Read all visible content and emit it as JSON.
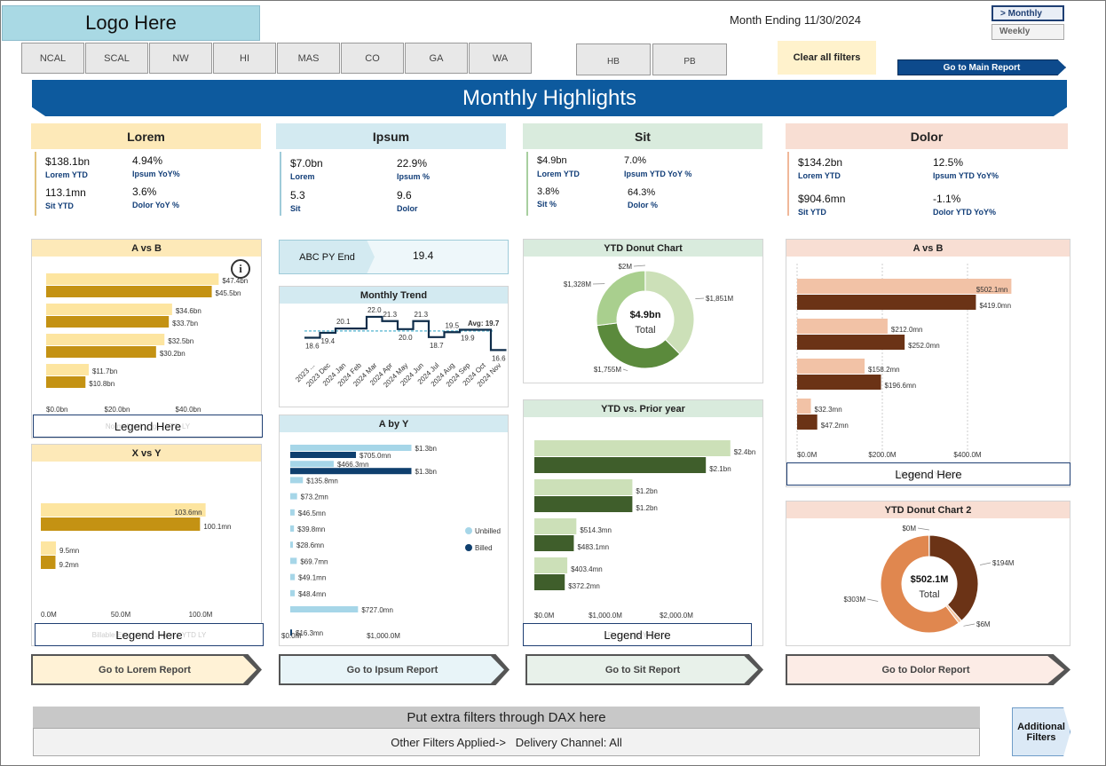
{
  "header": {
    "logo": "Logo Here",
    "month_ending": "Month Ending 11/30/2024",
    "toggle_monthly": "> Monthly",
    "toggle_weekly": "Weekly",
    "regions": [
      "NCAL",
      "SCAL",
      "NW",
      "HI",
      "MAS",
      "CO",
      "GA",
      "WA"
    ],
    "extra_filters": [
      "HB",
      "PB"
    ],
    "clear_filters": "Clear all filters",
    "main_report": "Go to Main Report",
    "banner": "Monthly Highlights"
  },
  "colors": {
    "banner": "#0d5a9e",
    "lorem_head": "#fde9b8",
    "ipsum_head": "#d3eaf1",
    "sit_head": "#d9ebdd",
    "dolor_head": "#f8ded3",
    "gold_light": "#fde5a0",
    "gold_dark": "#c49213",
    "navy": "#0f3f6e",
    "sky": "#a6d6e8",
    "green_light": "#cce0b8",
    "green_dark": "#3f5e2b",
    "peach_light": "#f2c2a6",
    "brown_dark": "#6b3316",
    "orange": "#e0874f"
  },
  "sections": {
    "lorem": {
      "title": "Lorem",
      "kpis": [
        {
          "value": "$138.1bn",
          "label": "Lorem YTD"
        },
        {
          "value": "4.94%",
          "label": "Ipsum YoY%"
        },
        {
          "value": "113.1mn",
          "label": "Sit YTD"
        },
        {
          "value": "3.6%",
          "label": "Dolor YoY %"
        }
      ],
      "go": "Go to Lorem Report"
    },
    "ipsum": {
      "title": "Ipsum",
      "kpis": [
        {
          "value": "$7.0bn",
          "label": "Lorem"
        },
        {
          "value": "22.9%",
          "label": "Ipsum %"
        },
        {
          "value": "5.3",
          "label": "Sit"
        },
        {
          "value": "9.6",
          "label": "Dolor"
        }
      ],
      "go": "Go to Ipsum Report"
    },
    "sit": {
      "title": "Sit",
      "kpis": [
        {
          "value": "$4.9bn",
          "label": "Lorem YTD"
        },
        {
          "value": "7.0%",
          "label": "Ipsum YTD YoY %"
        },
        {
          "value": "3.8%",
          "label": "Sit %"
        },
        {
          "value": "64.3%",
          "label": "Dolor %"
        }
      ],
      "go": "Go to Sit Report"
    },
    "dolor": {
      "title": "Dolor",
      "kpis": [
        {
          "value": "$134.2bn",
          "label": "Lorem YTD"
        },
        {
          "value": "12.5%",
          "label": "Ipsum YTD YoY%"
        },
        {
          "value": "$904.6mn",
          "label": "Sit YTD"
        },
        {
          "value": "-1.1%",
          "label": "Dolor YTD YoY%"
        }
      ],
      "go": "Go to Dolor Report"
    }
  },
  "abc": {
    "label": "ABC PY End",
    "value": "19.4"
  },
  "legends": {
    "lorem_top": "Legend Here",
    "lorem_top_ghost": "Normalized … ges YTD LY",
    "lorem_bottom": "Legend Here",
    "lorem_bottom_ghost": "Billable Encounter … unters YTD LY",
    "sit": "Legend Here",
    "sit_ghost": "Pay … nts YTD LY",
    "dolor": "Legend Here",
    "dolor_ghost": "Write-O … YTD LY"
  },
  "chart_data": [
    {
      "id": "lorem_avb",
      "type": "bar",
      "title": "A vs B",
      "info_icon": "info-icon",
      "orientation": "horizontal",
      "series": [
        {
          "values": [
            47.4,
            34.6,
            32.5,
            11.7
          ],
          "labels": [
            "$47.4bn",
            "$34.6bn",
            "$32.5bn",
            "$11.7bn"
          ]
        },
        {
          "values": [
            45.5,
            33.7,
            30.2,
            10.8
          ],
          "labels": [
            "$45.5bn",
            "$33.7bn",
            "$30.2bn",
            "$10.8bn"
          ]
        }
      ],
      "x_ticks": [
        "$0.0bn",
        "$20.0bn",
        "$40.0bn"
      ],
      "xlim": [
        0,
        50
      ]
    },
    {
      "id": "lorem_xvy",
      "type": "bar",
      "title": "X vs Y",
      "orientation": "horizontal",
      "series": [
        {
          "values": [
            103.6,
            9.5
          ],
          "labels": [
            "103.6mn",
            "9.5mn"
          ]
        },
        {
          "values": [
            100.1,
            9.2
          ],
          "labels": [
            "100.1mn",
            "9.2mn"
          ]
        }
      ],
      "x_ticks": [
        "0.0M",
        "50.0M",
        "100.0M"
      ],
      "xlim": [
        0,
        120
      ]
    },
    {
      "id": "ipsum_trend",
      "type": "line",
      "title": "Monthly Trend",
      "categories": [
        "2023 ...",
        "2023 Dec",
        "2024 Jan",
        "2024 Feb",
        "2024 Mar",
        "2024 Apr",
        "2024 May",
        "2024 Jun",
        "2024 Jul",
        "2024 Aug",
        "2024 Sep",
        "2024 Oct",
        "2024 Nov"
      ],
      "values": [
        18.6,
        19.4,
        20.1,
        20.1,
        22.0,
        21.3,
        20.0,
        21.3,
        18.7,
        19.5,
        19.9,
        19.9,
        16.6
      ],
      "point_labels": [
        "18.6",
        "19.4",
        "20.1",
        "",
        "22.0",
        "21.3",
        "20.0",
        "21.3",
        "18.7",
        "19.5",
        "19.9",
        "",
        "16.6"
      ],
      "average": 19.7,
      "average_label": "Avg: 19.7",
      "ylim": [
        15.5,
        23
      ]
    },
    {
      "id": "ipsum_avy",
      "type": "bar",
      "title": "A by Y",
      "orientation": "horizontal",
      "series": [
        {
          "name": "Unbilled",
          "values": [
            1300,
            466.3,
            135.8,
            73.2,
            46.5,
            39.8,
            28.6,
            69.7,
            49.1,
            48.4,
            727.0,
            0
          ],
          "labels": [
            "$1.3bn",
            "$466.3mn",
            "$135.8mn",
            "$73.2mn",
            "$46.5mn",
            "$39.8mn",
            "$28.6mn",
            "$69.7mn",
            "$49.1mn",
            "$48.4mn",
            "$727.0mn",
            ""
          ]
        },
        {
          "name": "Billed",
          "values": [
            705.0,
            1300,
            0,
            0,
            0,
            0,
            0,
            0,
            0,
            0,
            0,
            16.3
          ],
          "labels": [
            "$705.0mn",
            "$1.3bn",
            "",
            "",
            "",
            "",
            "",
            "",
            "",
            "",
            "",
            "$16.3mn"
          ]
        }
      ],
      "x_ticks": [
        "$0.0M",
        "$1,000.0M"
      ],
      "xlim": [
        0,
        1400
      ]
    },
    {
      "id": "sit_donut",
      "type": "pie",
      "title": "YTD Donut Chart",
      "center_value": "$4.9bn",
      "center_label": "Total",
      "slices": [
        {
          "label": "$1,851M",
          "value": 1851
        },
        {
          "label": "$1,755M",
          "value": 1755
        },
        {
          "label": "$1,328M",
          "value": 1328
        },
        {
          "label": "$2M",
          "value": 2
        }
      ]
    },
    {
      "id": "sit_ytd_py",
      "type": "bar",
      "title": "YTD vs. Prior year",
      "orientation": "horizontal",
      "series": [
        {
          "values": [
            2400,
            1200,
            514.3,
            403.4
          ],
          "labels": [
            "$2.4bn",
            "$1.2bn",
            "$514.3mn",
            "$403.4mn"
          ]
        },
        {
          "values": [
            2100,
            1200,
            483.1,
            372.2
          ],
          "labels": [
            "$2.1bn",
            "$1.2bn",
            "$483.1mn",
            "$372.2mn"
          ]
        }
      ],
      "x_ticks": [
        "$0.0M",
        "$1,000.0M",
        "$2,000.0M"
      ],
      "xlim": [
        0,
        2500
      ]
    },
    {
      "id": "dolor_avb",
      "type": "bar",
      "title": "A vs B",
      "orientation": "horizontal",
      "series": [
        {
          "values": [
            502.1,
            212.0,
            158.2,
            32.3
          ],
          "labels": [
            "$502.1mn",
            "$212.0mn",
            "$158.2mn",
            "$32.3mn"
          ]
        },
        {
          "values": [
            419.0,
            252.0,
            196.6,
            47.2
          ],
          "labels": [
            "$419.0mn",
            "$252.0mn",
            "$196.6mn",
            "$47.2mn"
          ]
        }
      ],
      "x_ticks": [
        "$0.0M",
        "$200.0M",
        "$400.0M"
      ],
      "xlim": [
        0,
        520
      ]
    },
    {
      "id": "dolor_donut",
      "type": "pie",
      "title": "YTD Donut Chart 2",
      "center_value": "$502.1M",
      "center_label": "Total",
      "slices": [
        {
          "label": "$194M",
          "value": 194
        },
        {
          "label": "$6M",
          "value": 6
        },
        {
          "label": "$303M",
          "value": 303
        },
        {
          "label": "$0M",
          "value": 0.4
        }
      ]
    }
  ],
  "footer": {
    "dax_note": "Put extra filters through DAX here",
    "other_filters": "Other Filters Applied->   Delivery Channel: All",
    "additional_filters": "Additional Filters"
  }
}
